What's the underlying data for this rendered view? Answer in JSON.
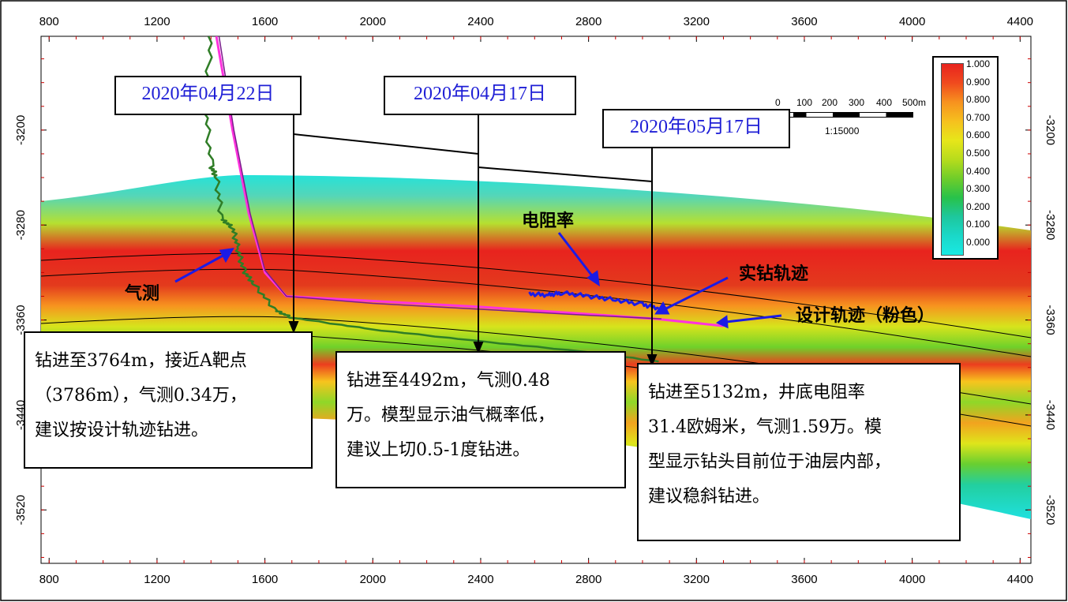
{
  "chart_data": {
    "type": "heatmap",
    "title": "",
    "x_ticks": [
      800,
      1200,
      1600,
      2000,
      2400,
      2800,
      3200,
      3600,
      4000,
      4400
    ],
    "y_ticks": [
      -3200,
      -3280,
      -3360,
      -3440,
      -3520
    ],
    "xlim": [
      770,
      4440
    ],
    "ylim": [
      -3121,
      -3565
    ],
    "colorbar": {
      "labels": [
        "1.000",
        "0.900",
        "0.800",
        "0.700",
        "0.600",
        "0.500",
        "0.400",
        "0.300",
        "0.200",
        "0.100",
        "0.000"
      ],
      "colors": [
        "#e8231e",
        "#f04a1e",
        "#f7921f",
        "#f6c01e",
        "#e7e61a",
        "#b7dc1c",
        "#6fcd2a",
        "#28c24a",
        "#1ec79d",
        "#1ad8c8",
        "#19e9e3"
      ]
    },
    "scale_bar": {
      "labels": [
        "0",
        "100",
        "200",
        "300",
        "400",
        "500m"
      ],
      "ratio": "1:15000"
    },
    "series": [
      {
        "name": "设计轨迹（粉色）",
        "color": "#ff33dd",
        "points": [
          [
            1420,
            -3121
          ],
          [
            1480,
            -3200
          ],
          [
            1540,
            -3270
          ],
          [
            1600,
            -3320
          ],
          [
            1680,
            -3340
          ],
          [
            2000,
            -3344
          ],
          [
            2400,
            -3349
          ],
          [
            2800,
            -3355
          ],
          [
            3050,
            -3359
          ],
          [
            3300,
            -3365
          ]
        ]
      },
      {
        "name": "实钻轨迹",
        "color": "#7a1c8c",
        "points": [
          [
            1430,
            -3121
          ],
          [
            1485,
            -3200
          ],
          [
            1545,
            -3270
          ],
          [
            1600,
            -3318
          ],
          [
            1680,
            -3340
          ],
          [
            2000,
            -3346
          ],
          [
            2400,
            -3351
          ],
          [
            2800,
            -3356
          ],
          [
            3070,
            -3359
          ]
        ]
      },
      {
        "name": "气测",
        "color": "#2f7d26",
        "points": [
          [
            1400,
            -3121
          ],
          [
            1380,
            -3180
          ],
          [
            1400,
            -3230
          ],
          [
            1420,
            -3240
          ],
          [
            1440,
            -3275
          ],
          [
            1480,
            -3282
          ],
          [
            1500,
            -3300
          ],
          [
            1520,
            -3318
          ],
          [
            1560,
            -3330
          ],
          [
            1640,
            -3352
          ],
          [
            1700,
            -3358
          ],
          [
            2000,
            -3368
          ],
          [
            2400,
            -3378
          ],
          [
            2800,
            -3387
          ],
          [
            3060,
            -3395
          ]
        ]
      },
      {
        "name": "电阻率",
        "color": "#1b1be6",
        "points": [
          [
            2580,
            -3338
          ],
          [
            2650,
            -3339
          ],
          [
            2700,
            -3337
          ],
          [
            2800,
            -3340
          ],
          [
            2900,
            -3343
          ],
          [
            3000,
            -3347
          ],
          [
            3060,
            -3350
          ]
        ]
      }
    ]
  },
  "annotations": {
    "dates": [
      "2020年04月22日",
      "2020年04月17日",
      "2020年05月17日"
    ],
    "labels": {
      "gas": "气测",
      "resistivity": "电阻率",
      "actual": "实钻轨迹",
      "design": "设计轨迹（粉色）"
    },
    "notes": [
      [
        "钻进至3764m，接近A靶点",
        "（3786m），气测0.34万，",
        "建议按设计轨迹钻进。"
      ],
      [
        "钻进至4492m，气测0.48",
        "万。模型显示油气概率低，",
        "建议上切0.5-1度钻进。"
      ],
      [
        "钻进至5132m，井底电阻率",
        "31.4欧姆米，气测1.59万。模",
        "型显示钻头目前位于油层内部，",
        "建议稳斜钻进。"
      ]
    ]
  }
}
